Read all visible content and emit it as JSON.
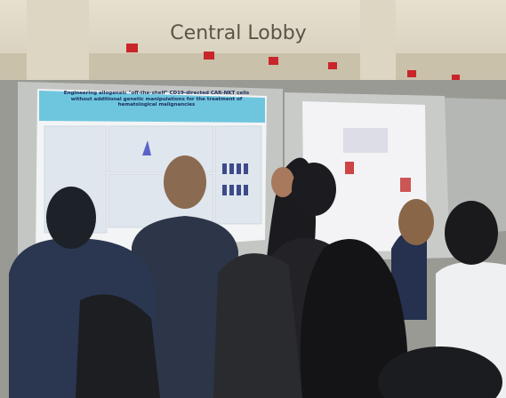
{
  "sign": {
    "text": "Central Lobby"
  },
  "poster": {
    "title": "Engineering allogeneic \"off-the-shelf\" CD19-directed CAR-NKT cells without additional genetic manipulations for the treatment of hematological malignancies"
  }
}
